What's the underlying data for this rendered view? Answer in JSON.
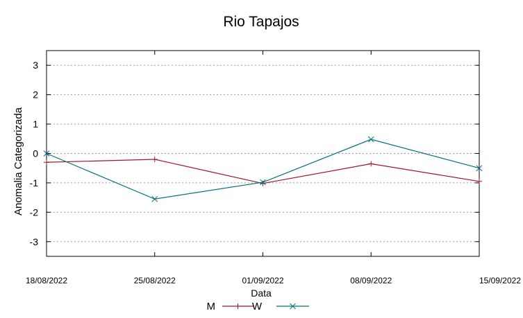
{
  "chart_data": {
    "type": "line",
    "title": "Rio Tapajos",
    "xlabel": "Data",
    "ylabel": "Anomalia Categorizada",
    "x": [
      "18/08/2022",
      "25/08/2022",
      "01/09/2022",
      "08/09/2022",
      "15/09/2022"
    ],
    "ylim": [
      -3.5,
      3.5
    ],
    "yticks": [
      3,
      2,
      1,
      0,
      -1,
      -2,
      -3
    ],
    "yticklabels": [
      "3",
      "2",
      "1",
      "0",
      "-1",
      "-2",
      "-3"
    ],
    "grid": true,
    "legend_position": "bottom",
    "series": [
      {
        "name": "M",
        "color": "#a0142b",
        "marker": "plus",
        "values": [
          -0.3,
          -0.2,
          -1.02,
          -0.35,
          -0.95
        ]
      },
      {
        "name": "W",
        "color": "#00727b",
        "marker": "x",
        "values": [
          0.0,
          -1.55,
          -0.98,
          0.48,
          -0.5
        ]
      }
    ]
  }
}
